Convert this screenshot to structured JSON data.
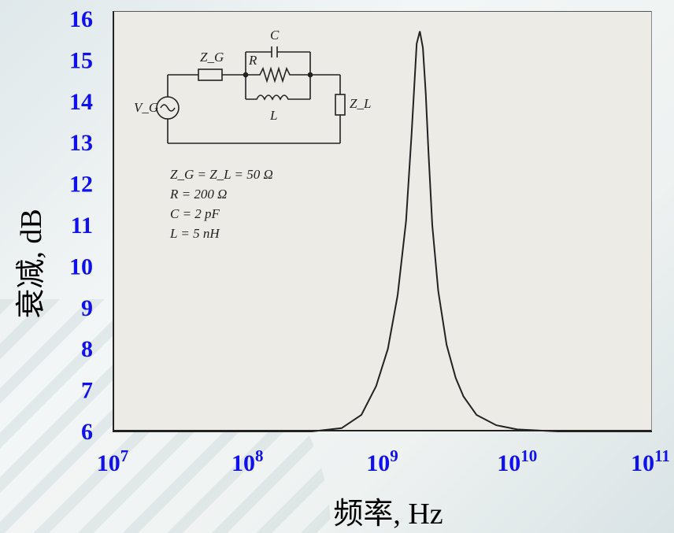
{
  "chart_data": {
    "type": "line",
    "xlabel": "频率, Hz",
    "ylabel": "衰减, dB",
    "x_scale": "log",
    "xlim": [
      10000000,
      100000000000
    ],
    "ylim": [
      6,
      16
    ],
    "x_ticks": [
      {
        "base": "10",
        "exp": "7"
      },
      {
        "base": "10",
        "exp": "8"
      },
      {
        "base": "10",
        "exp": "9"
      },
      {
        "base": "10",
        "exp": "10"
      },
      {
        "base": "10",
        "exp": "11"
      }
    ],
    "y_ticks": [
      "6",
      "7",
      "8",
      "9",
      "10",
      "11",
      "12",
      "13",
      "14",
      "15",
      "16"
    ],
    "grid": false,
    "series": [
      {
        "color": "#222222",
        "x": [
          10000000,
          100000000,
          300000000,
          500000000,
          700000000,
          900000000,
          1100000000,
          1300000000,
          1500000000,
          1650000000,
          1800000000,
          1900000000,
          2000000000,
          2100000000,
          2200000000,
          2350000000,
          2600000000,
          3000000000,
          3500000000,
          4000000000,
          5000000000,
          7000000000,
          10000000000,
          20000000000,
          50000000000,
          100000000000
        ],
        "y": [
          6.0,
          6.0,
          6.0,
          6.08,
          6.4,
          7.1,
          8.0,
          9.3,
          11.1,
          13.2,
          15.4,
          15.7,
          15.3,
          14.2,
          12.8,
          11.0,
          9.4,
          8.1,
          7.3,
          6.85,
          6.4,
          6.15,
          6.05,
          6.0,
          6.0,
          6.0
        ]
      }
    ],
    "inset": {
      "circuit_labels": {
        "source": "V_G",
        "zg": "Z_G",
        "r": "R",
        "c": "C",
        "l": "L",
        "zl": "Z_L"
      },
      "params": [
        "Z_G = Z_L = 50 Ω",
        "R = 200 Ω",
        "C = 2 pF",
        "L = 5 nH"
      ]
    }
  }
}
